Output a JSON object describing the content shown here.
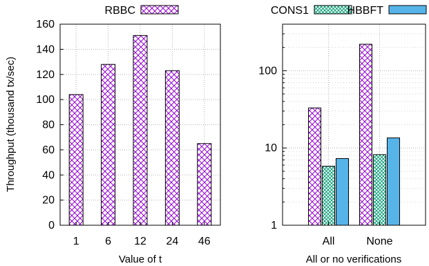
{
  "chart_data": [
    {
      "type": "bar",
      "categories": [
        "1",
        "6",
        "12",
        "24",
        "46"
      ],
      "series": [
        {
          "name": "RBBC",
          "values": [
            104,
            128,
            151,
            123,
            65
          ]
        }
      ],
      "xlabel": "Value of t",
      "ylabel": "Throughput (thousand tx/sec)",
      "ylim": [
        0,
        160
      ],
      "yticks": [
        0,
        20,
        40,
        60,
        80,
        100,
        120,
        140,
        160
      ],
      "grid": true,
      "legend": "top"
    },
    {
      "type": "bar",
      "categories": [
        "All",
        "None"
      ],
      "series": [
        {
          "name": "",
          "values": [
            33,
            220
          ]
        },
        {
          "name": "CONS1",
          "values": [
            5.8,
            8.2
          ]
        },
        {
          "name": "HBBFT",
          "values": [
            7.3,
            13.5
          ]
        }
      ],
      "xlabel": "All or no verifications",
      "ylabel": "",
      "ylim": [
        1,
        400
      ],
      "yscale": "log",
      "yticks": [
        1,
        10,
        100
      ],
      "grid": true,
      "legend": "top"
    }
  ],
  "colors": {
    "rbbc": "#9400d3",
    "cons1": "#009e73",
    "hbbft": "#56b4e9"
  }
}
